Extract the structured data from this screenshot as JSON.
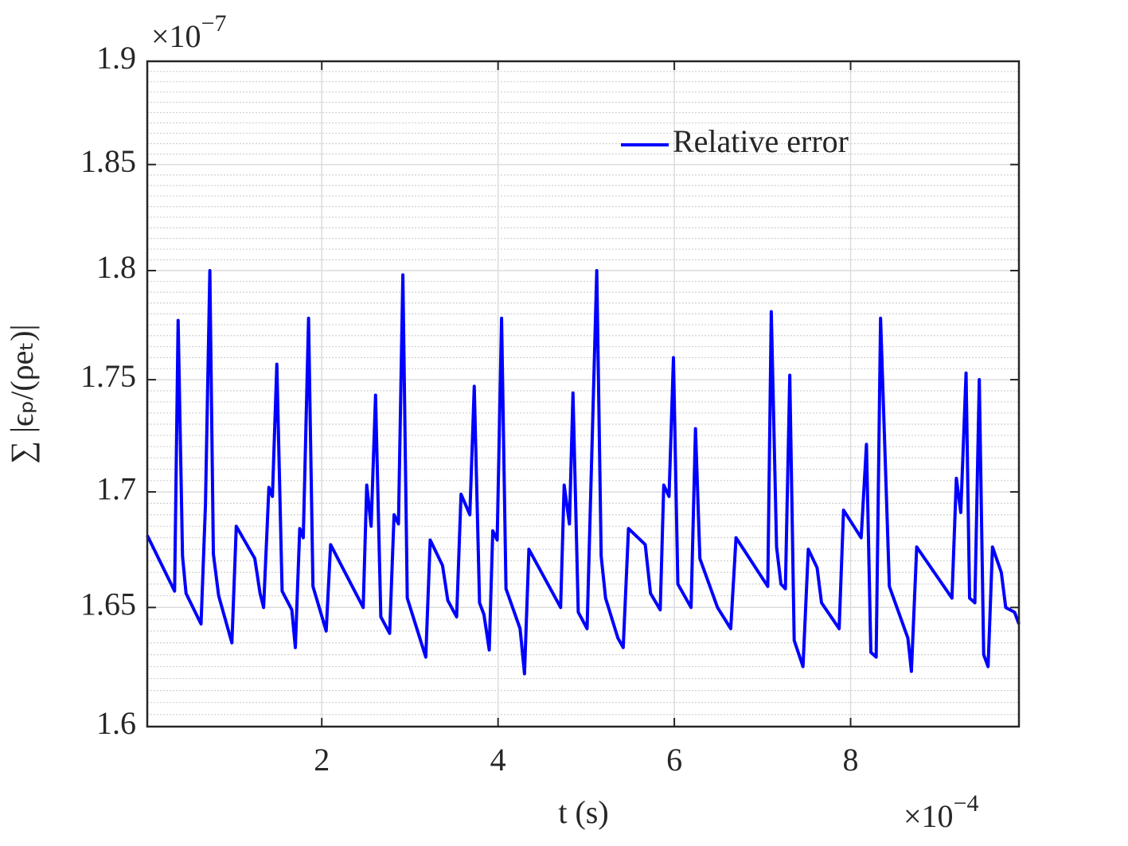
{
  "chart_data": {
    "type": "line",
    "xlabel": "t (s)",
    "ylabel": "∑ |ϵₚ/(ρeₜ)|",
    "x_multiplier": {
      "base": "×10",
      "exponent": "−4"
    },
    "y_multiplier": {
      "base": "×10",
      "exponent": "−7"
    },
    "xlim": [
      0.02,
      9.91
    ],
    "xticks": [
      2,
      4,
      6,
      8
    ],
    "ylim": [
      1.6,
      1.9
    ],
    "yticks": [
      1.6,
      1.65,
      1.7,
      1.75,
      1.8,
      1.85,
      1.9
    ],
    "yminorticks": [
      1.605,
      1.61,
      1.615,
      1.62,
      1.625,
      1.63,
      1.635,
      1.64,
      1.645,
      1.655,
      1.66,
      1.665,
      1.67,
      1.675,
      1.68,
      1.685,
      1.69,
      1.695,
      1.705,
      1.71,
      1.715,
      1.72,
      1.725,
      1.73,
      1.735,
      1.74,
      1.745,
      1.755,
      1.76,
      1.765,
      1.77,
      1.775,
      1.78,
      1.785,
      1.79,
      1.795,
      1.805,
      1.81,
      1.815,
      1.82,
      1.825,
      1.83,
      1.835,
      1.84,
      1.845,
      1.855,
      1.86,
      1.865,
      1.87,
      1.875,
      1.88,
      1.885,
      1.89,
      1.895
    ],
    "ylog": true,
    "grid": true,
    "legend": "upper right",
    "series": [
      {
        "name": "Relative error",
        "color": "#0000ff",
        "x": [
          0.02,
          0.33,
          0.37,
          0.42,
          0.46,
          0.63,
          0.68,
          0.73,
          0.77,
          0.83,
          0.98,
          1.03,
          1.24,
          1.3,
          1.34,
          1.4,
          1.44,
          1.49,
          1.55,
          1.66,
          1.7,
          1.75,
          1.79,
          1.85,
          1.9,
          2.05,
          2.1,
          2.47,
          2.51,
          2.56,
          2.61,
          2.67,
          2.77,
          2.82,
          2.87,
          2.92,
          2.97,
          3.18,
          3.23,
          3.37,
          3.43,
          3.53,
          3.58,
          3.68,
          3.73,
          3.79,
          3.84,
          3.9,
          3.94,
          3.99,
          4.04,
          4.09,
          4.25,
          4.3,
          4.35,
          4.71,
          4.75,
          4.81,
          4.85,
          4.91,
          5.01,
          5.12,
          5.17,
          5.22,
          5.36,
          5.42,
          5.48,
          5.67,
          5.73,
          5.84,
          5.88,
          5.94,
          5.99,
          6.04,
          6.19,
          6.24,
          6.29,
          6.49,
          6.64,
          6.7,
          7.06,
          7.1,
          7.16,
          7.21,
          7.26,
          7.31,
          7.36,
          7.46,
          7.52,
          7.62,
          7.67,
          7.87,
          7.92,
          8.12,
          8.18,
          8.23,
          8.29,
          8.34,
          8.44,
          8.65,
          8.69,
          8.75,
          9.15,
          9.2,
          9.25,
          9.31,
          9.35,
          9.41,
          9.46,
          9.51,
          9.56,
          9.61,
          9.71,
          9.76,
          9.86,
          9.91
        ],
        "values": [
          1.681,
          1.657,
          1.777,
          1.672,
          1.656,
          1.643,
          1.694,
          1.8,
          1.673,
          1.655,
          1.635,
          1.685,
          1.671,
          1.656,
          1.65,
          1.702,
          1.698,
          1.757,
          1.657,
          1.649,
          1.633,
          1.684,
          1.68,
          1.778,
          1.659,
          1.64,
          1.677,
          1.65,
          1.703,
          1.685,
          1.743,
          1.646,
          1.639,
          1.69,
          1.686,
          1.798,
          1.654,
          1.629,
          1.679,
          1.668,
          1.653,
          1.646,
          1.699,
          1.69,
          1.747,
          1.652,
          1.647,
          1.632,
          1.683,
          1.679,
          1.778,
          1.658,
          1.641,
          1.622,
          1.675,
          1.65,
          1.703,
          1.686,
          1.744,
          1.648,
          1.641,
          1.8,
          1.672,
          1.654,
          1.637,
          1.633,
          1.684,
          1.677,
          1.656,
          1.649,
          1.703,
          1.698,
          1.76,
          1.66,
          1.65,
          1.728,
          1.671,
          1.65,
          1.641,
          1.68,
          1.659,
          1.781,
          1.676,
          1.66,
          1.658,
          1.752,
          1.636,
          1.625,
          1.675,
          1.667,
          1.652,
          1.641,
          1.692,
          1.68,
          1.721,
          1.631,
          1.629,
          1.778,
          1.659,
          1.637,
          1.623,
          1.676,
          1.654,
          1.706,
          1.691,
          1.753,
          1.654,
          1.652,
          1.75,
          1.63,
          1.625,
          1.676,
          1.665,
          1.65,
          1.648,
          1.643
        ]
      }
    ]
  }
}
